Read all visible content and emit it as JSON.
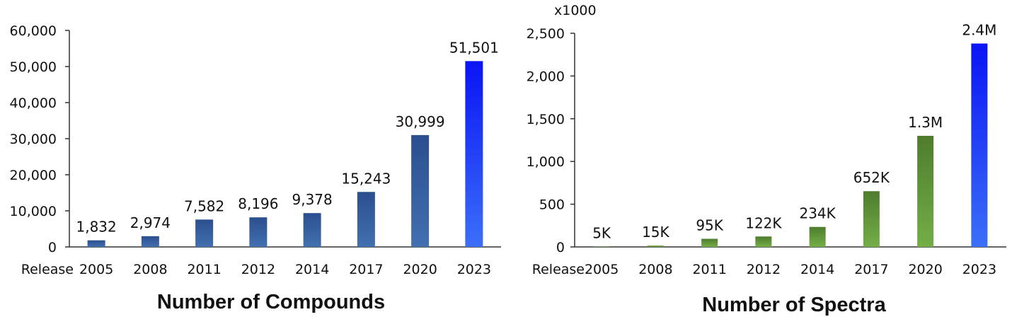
{
  "chart_data": [
    {
      "type": "bar",
      "title": "Number of Compounds",
      "xlabel": "Release",
      "ylabel": "",
      "categories": [
        "2005",
        "2008",
        "2011",
        "2012",
        "2014",
        "2017",
        "2020",
        "2023"
      ],
      "values": [
        1832,
        2974,
        7582,
        8196,
        9378,
        15243,
        30999,
        51501
      ],
      "data_labels": [
        "1,832",
        "2,974",
        "7,582",
        "8,196",
        "9,378",
        "15,243",
        "30,999",
        "51,501"
      ],
      "ylim": [
        0,
        60000
      ],
      "yticks": [
        0,
        10000,
        20000,
        30000,
        40000,
        50000,
        60000
      ],
      "ytick_labels": [
        "0",
        "10,000",
        "20,000",
        "30,000",
        "40,000",
        "50,000",
        "60,000"
      ],
      "grid": false,
      "legend": "none",
      "colors": {
        "bar_top": "#2b4f8e",
        "bar_bottom": "#4270b0",
        "highlight_top": "#0a14f5",
        "highlight_bottom": "#3b6ff8"
      }
    },
    {
      "type": "bar",
      "title": "Number of Spectra",
      "xlabel": "Release",
      "ylabel": "",
      "unit_label": "x1000",
      "categories": [
        "2005",
        "2008",
        "2011",
        "2012",
        "2014",
        "2017",
        "2020",
        "2023"
      ],
      "values": [
        5,
        15,
        95,
        122,
        234,
        652,
        1300,
        2380
      ],
      "data_labels": [
        "5K",
        "15K",
        "95K",
        "122K",
        "234K",
        "652K",
        "1.3M",
        "2.4M"
      ],
      "ylim": [
        0,
        2500
      ],
      "yticks": [
        0,
        500,
        1000,
        1500,
        2000,
        2500
      ],
      "ytick_labels": [
        "0",
        "500",
        "1,000",
        "1,500",
        "2,000",
        "2,500"
      ],
      "grid": false,
      "legend": "none",
      "colors": {
        "bar_top": "#4e7d2d",
        "bar_bottom": "#74ae47",
        "highlight_top": "#0a14f5",
        "highlight_bottom": "#3b6ff8"
      }
    }
  ]
}
